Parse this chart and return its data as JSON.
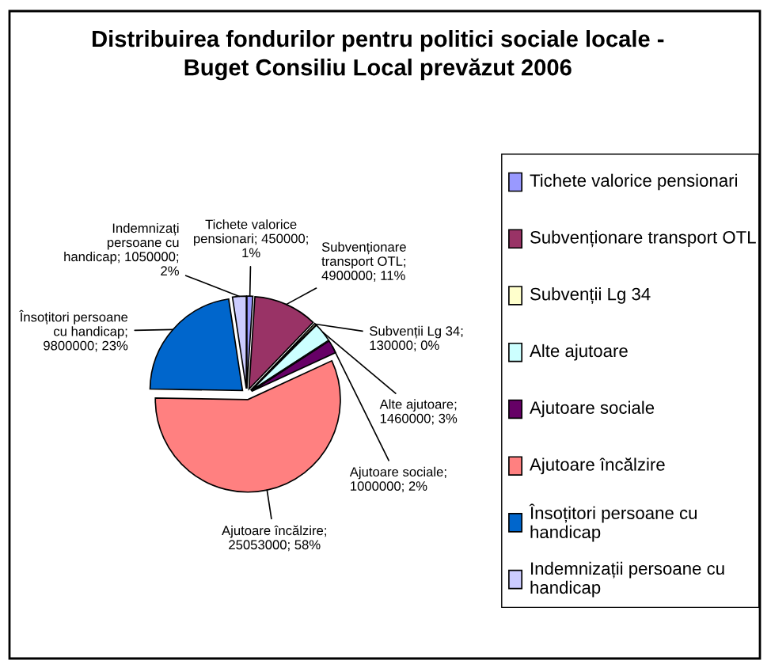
{
  "chart_data": {
    "type": "pie",
    "title": "Distribuirea fondurilor pentru politici sociale locale -\nBuget Consiliu Local prevăzut 2006",
    "categories": [
      "Tichete valorice pensionari",
      "Subvenționare transport OTL",
      "Subvenții Lg 34",
      "Alte ajutoare",
      "Ajutoare sociale",
      "Ajutoare încălzire",
      "Însoțitori persoane cu handicap",
      "Indemnizații persoane cu handicap"
    ],
    "values": [
      450000,
      4900000,
      130000,
      1460000,
      1000000,
      25053000,
      9800000,
      1050000
    ],
    "colors": [
      "#9999ff",
      "#993366",
      "#ffffcc",
      "#ccffff",
      "#660066",
      "#ff8080",
      "#0066cc",
      "#ccccff"
    ],
    "value_labels": [
      "Tichete valorice\npensionari; 450000;\n1%",
      "Subvenționare\ntransport OTL;\n4900000; 11%",
      "Subvenții Lg 34;\n130000; 0%",
      "Alte ajutoare;\n1460000; 3%",
      "Ajutoare sociale;\n1000000; 2%",
      "Ajutoare încălzire;\n25053000; 58%",
      "Însoțitori persoane\ncu handicap;\n9800000; 23%",
      "Indemnizați\npersoane cu\nhandicap; 1050000;\n2%"
    ],
    "legend": "right"
  }
}
